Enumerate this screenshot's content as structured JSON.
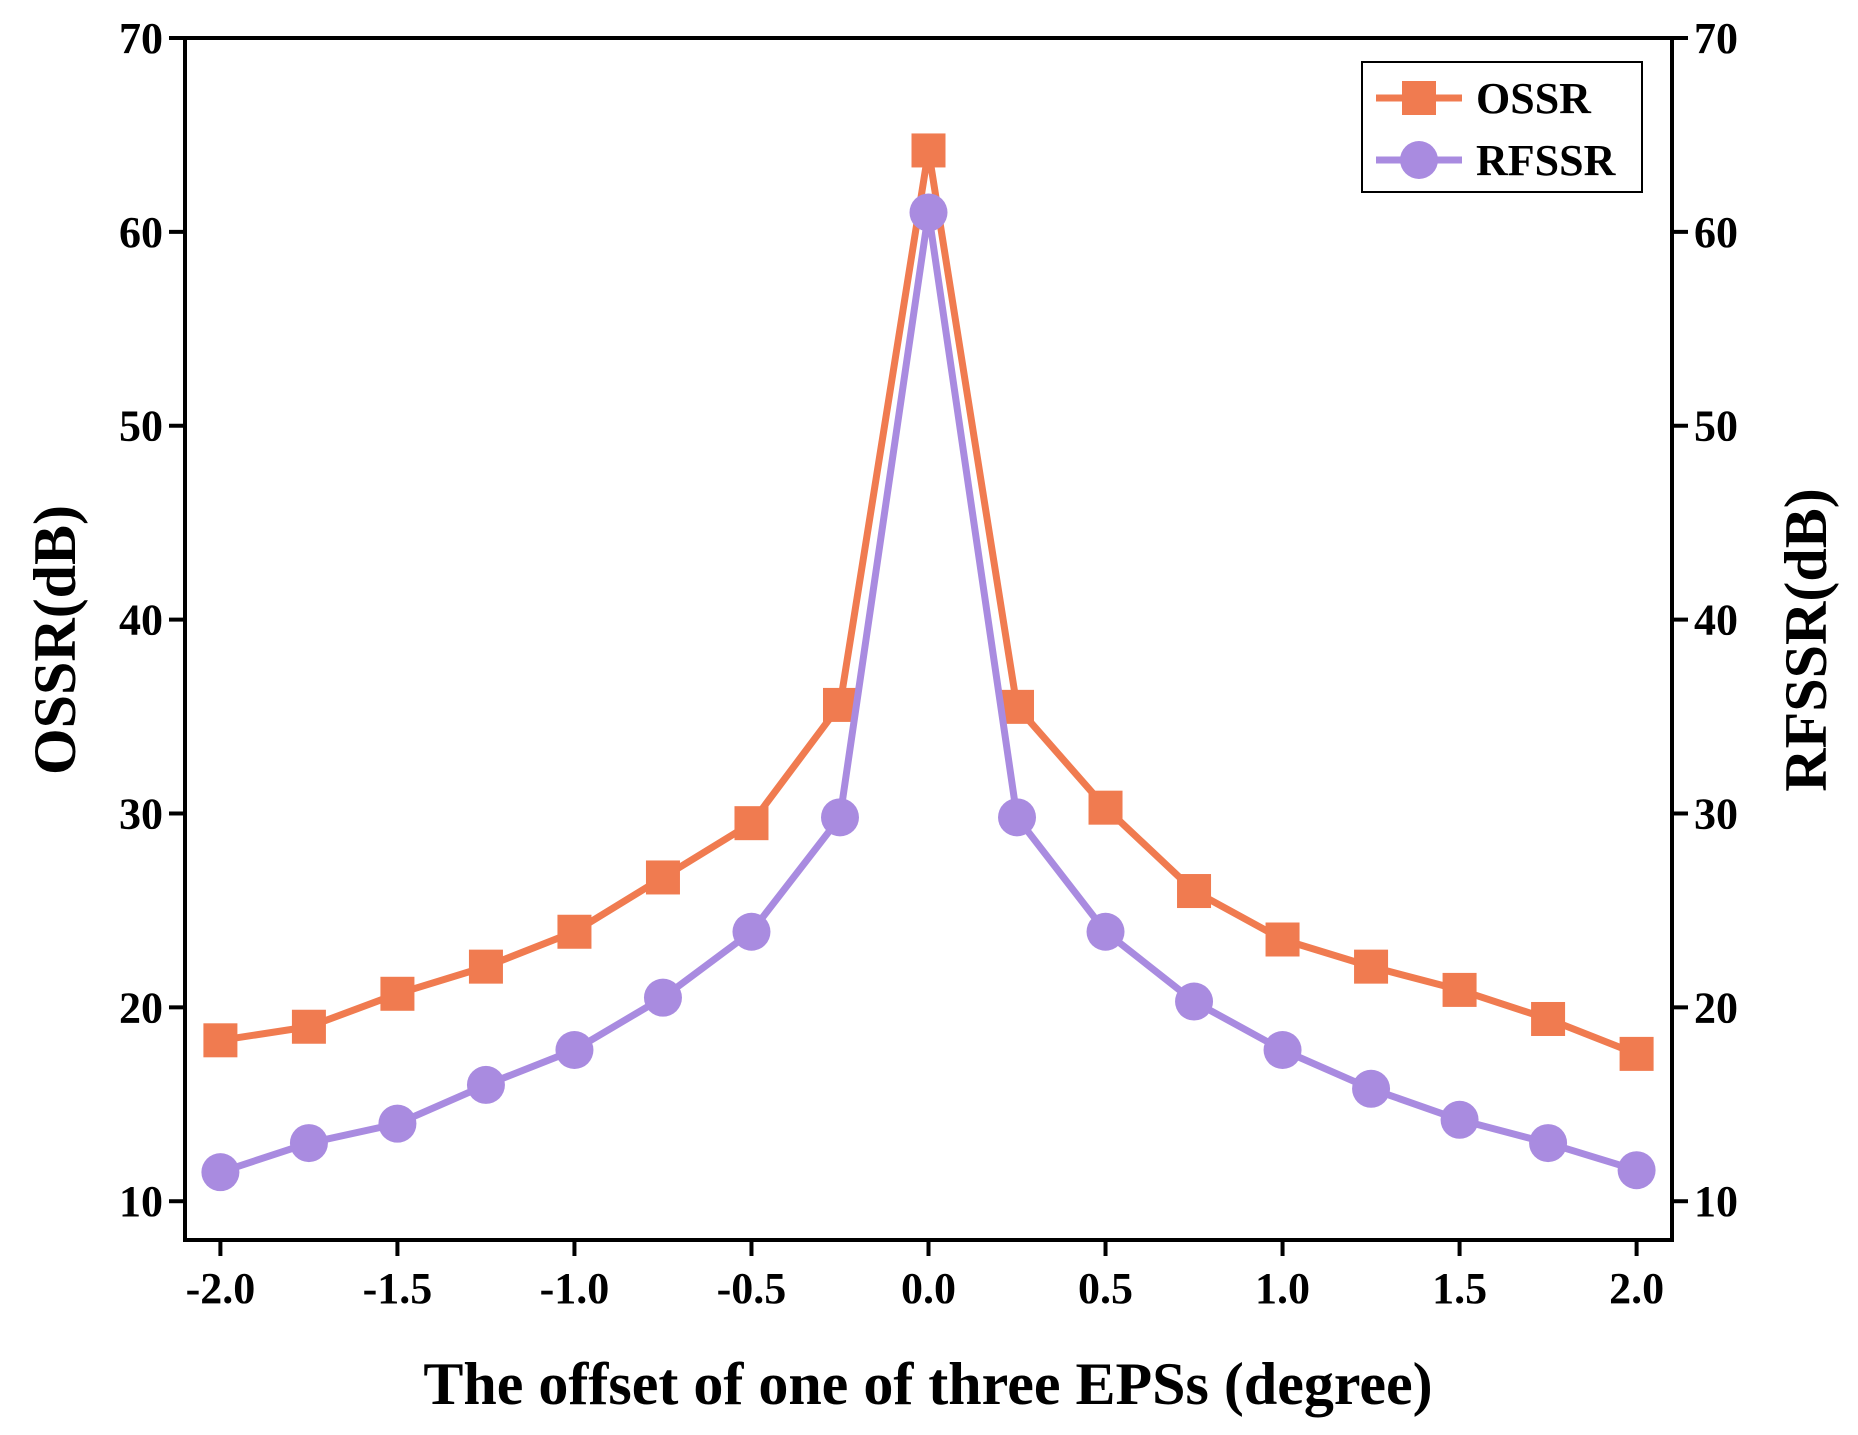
{
  "chart_data": {
    "type": "line",
    "title": "",
    "xlabel": "The offset of one of three EPSs (degree)",
    "ylabel_left": "OSSR(dB)",
    "ylabel_right": "RFSSR(dB)",
    "xlim": [
      -2.1,
      2.1
    ],
    "ylim": [
      8,
      70
    ],
    "x_ticks": [
      -2.0,
      -1.5,
      -1.0,
      -0.5,
      0.0,
      0.5,
      1.0,
      1.5,
      2.0
    ],
    "x_tick_labels": [
      "-2.0",
      "-1.5",
      "-1.0",
      "-0.5",
      "0.0",
      "0.5",
      "1.0",
      "1.5",
      "2.0"
    ],
    "y_ticks": [
      10,
      20,
      30,
      40,
      50,
      60,
      70
    ],
    "y_tick_labels": [
      "10",
      "20",
      "30",
      "40",
      "50",
      "60",
      "70"
    ],
    "grid": false,
    "legend_position": "top-right",
    "x": [
      -2.0,
      -1.75,
      -1.5,
      -1.25,
      -1.0,
      -0.75,
      -0.5,
      -0.25,
      0.0,
      0.25,
      0.5,
      0.75,
      1.0,
      1.25,
      1.5,
      1.75,
      2.0
    ],
    "series": [
      {
        "name": "OSSR",
        "axis": "left",
        "marker": "square",
        "color": "#F07B50",
        "values": [
          18.3,
          19.0,
          20.7,
          22.1,
          23.9,
          26.7,
          29.5,
          35.6,
          64.2,
          35.5,
          30.3,
          26.0,
          23.5,
          22.1,
          20.9,
          19.4,
          17.6
        ]
      },
      {
        "name": "RFSSR",
        "axis": "right",
        "marker": "circle",
        "color": "#A98BE0",
        "values": [
          11.5,
          13.0,
          14.0,
          16.0,
          17.8,
          20.5,
          23.9,
          29.8,
          61.0,
          29.8,
          23.9,
          20.3,
          17.8,
          15.8,
          14.2,
          13.0,
          11.6
        ]
      }
    ]
  }
}
